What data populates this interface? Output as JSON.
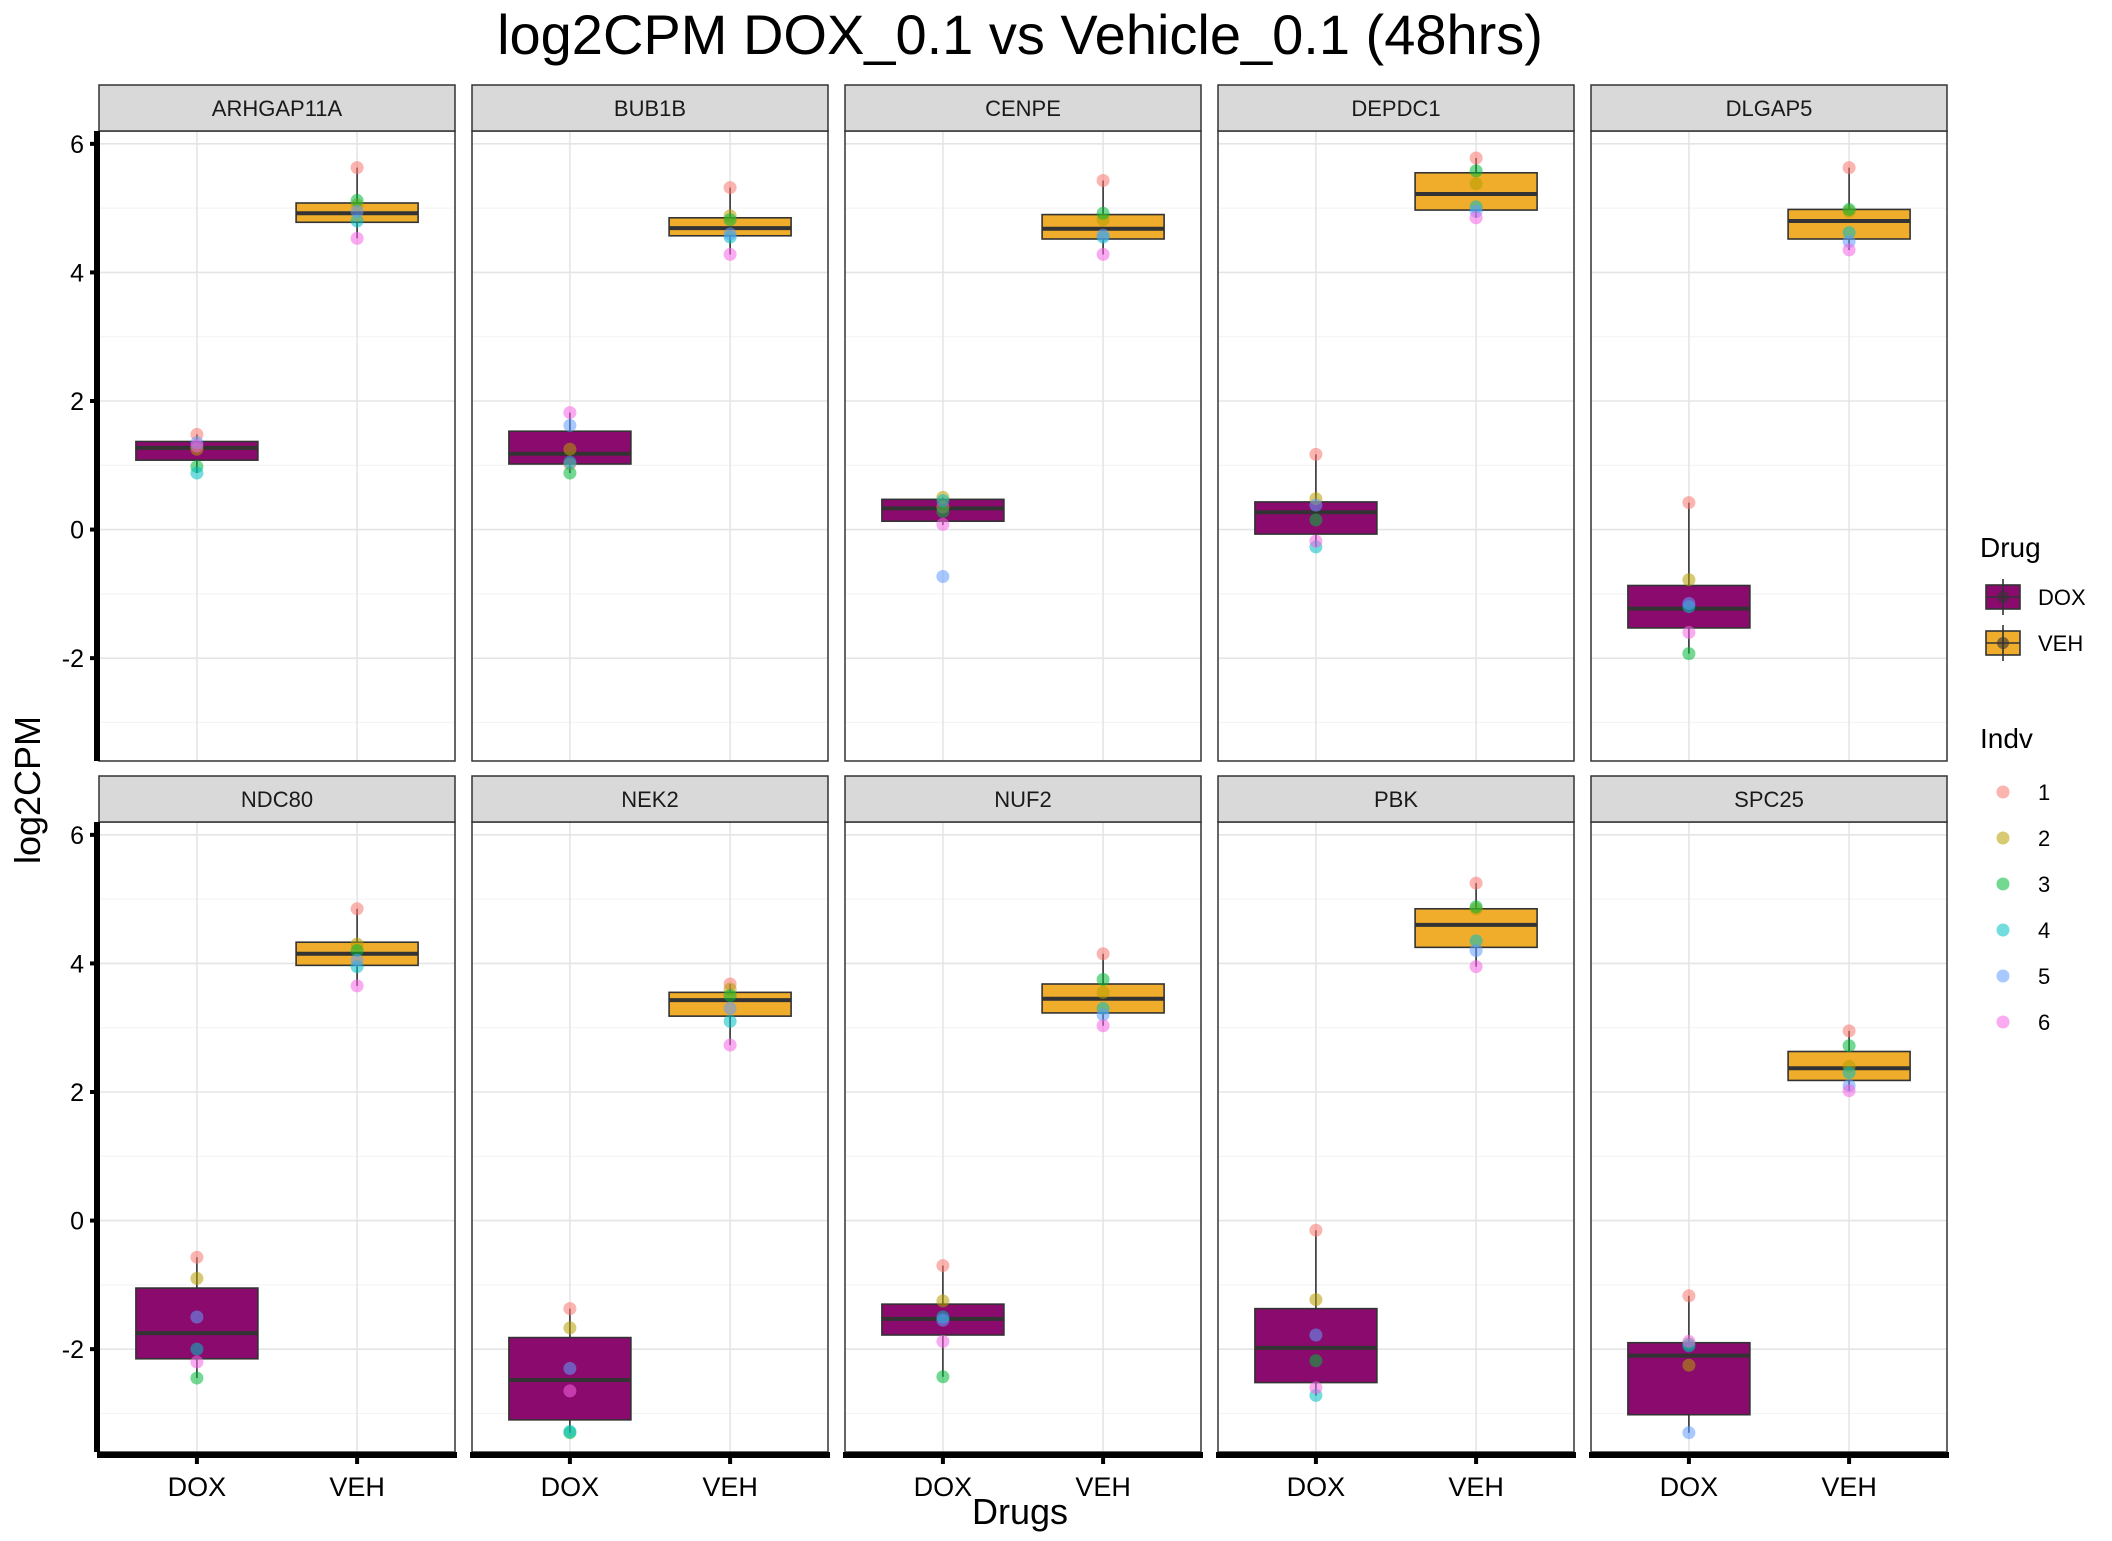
{
  "chart_data": {
    "type": "box",
    "title": "log2CPM DOX_0.1 vs Vehicle_0.1 (48hrs)",
    "xlabel": "Drugs",
    "ylabel": "log2CPM",
    "ylim": [
      -3.6,
      6.2
    ],
    "yticks": [
      -2,
      0,
      2,
      4,
      6
    ],
    "ytick_labels": [
      "-2",
      "0",
      "2",
      "4",
      "6"
    ],
    "categories": [
      "DOX",
      "VEH"
    ],
    "grid": true,
    "facet_layout": "2 rows x 5 columns",
    "legend_position": "right",
    "legends": {
      "drug": {
        "title": "Drug",
        "items": [
          {
            "label": "DOX",
            "color": "#8B0A6E"
          },
          {
            "label": "VEH",
            "color": "#F0AD2B"
          }
        ]
      },
      "indv": {
        "title": "Indv",
        "items": [
          {
            "label": "1",
            "color": "#F8766D"
          },
          {
            "label": "2",
            "color": "#B79F00"
          },
          {
            "label": "3",
            "color": "#00BA38"
          },
          {
            "label": "4",
            "color": "#00BFC4"
          },
          {
            "label": "5",
            "color": "#619CFF"
          },
          {
            "label": "6",
            "color": "#F564E3"
          }
        ]
      }
    },
    "facets": [
      {
        "gene": "ARHGAP11A",
        "DOX": {
          "q1": 1.08,
          "median": 1.27,
          "q3": 1.37,
          "whisker_low": 0.88,
          "whisker_high": 1.48,
          "points": [
            1.48,
            1.25,
            0.98,
            0.88,
            1.35,
            1.3
          ]
        },
        "VEH": {
          "q1": 4.78,
          "median": 4.92,
          "q3": 5.08,
          "whisker_low": 4.53,
          "whisker_high": 5.63,
          "points": [
            5.63,
            5.05,
            5.12,
            4.8,
            4.95,
            4.53
          ]
        }
      },
      {
        "gene": "BUB1B",
        "DOX": {
          "q1": 1.02,
          "median": 1.18,
          "q3": 1.53,
          "whisker_low": 0.88,
          "whisker_high": 1.82,
          "points": [
            1.02,
            1.25,
            0.88,
            1.05,
            1.62,
            1.82
          ]
        },
        "VEH": {
          "q1": 4.57,
          "median": 4.69,
          "q3": 4.85,
          "whisker_low": 4.28,
          "whisker_high": 5.32,
          "points": [
            5.32,
            4.88,
            4.82,
            4.55,
            4.6,
            4.28
          ]
        }
      },
      {
        "gene": "CENPE",
        "DOX": {
          "q1": 0.13,
          "median": 0.33,
          "q3": 0.47,
          "whisker_low": 0.07,
          "whisker_high": 0.5,
          "points": [
            0.35,
            0.5,
            0.28,
            0.45,
            -0.73,
            0.08
          ]
        },
        "VEH": {
          "q1": 4.52,
          "median": 4.68,
          "q3": 4.9,
          "whisker_low": 4.28,
          "whisker_high": 5.43,
          "points": [
            5.43,
            4.82,
            4.92,
            4.55,
            4.58,
            4.28
          ]
        }
      },
      {
        "gene": "DEPDC1",
        "DOX": {
          "q1": -0.07,
          "median": 0.27,
          "q3": 0.43,
          "whisker_low": -0.27,
          "whisker_high": 1.17,
          "points": [
            1.17,
            0.48,
            0.15,
            -0.27,
            0.38,
            -0.18
          ]
        },
        "VEH": {
          "q1": 4.97,
          "median": 5.22,
          "q3": 5.55,
          "whisker_low": 4.85,
          "whisker_high": 5.78,
          "points": [
            5.78,
            5.38,
            5.58,
            5.02,
            4.95,
            4.85
          ]
        }
      },
      {
        "gene": "DLGAP5",
        "DOX": {
          "q1": -1.53,
          "median": -1.23,
          "q3": -0.87,
          "whisker_low": -1.93,
          "whisker_high": 0.42,
          "points": [
            0.42,
            -0.78,
            -1.93,
            -1.2,
            -1.15,
            -1.6
          ]
        },
        "VEH": {
          "q1": 4.52,
          "median": 4.8,
          "q3": 4.98,
          "whisker_low": 4.35,
          "whisker_high": 5.63,
          "points": [
            5.63,
            4.95,
            4.98,
            4.62,
            4.48,
            4.35
          ]
        }
      },
      {
        "gene": "NDC80",
        "DOX": {
          "q1": -2.15,
          "median": -1.75,
          "q3": -1.05,
          "whisker_low": -2.45,
          "whisker_high": -0.57,
          "points": [
            -0.57,
            -0.9,
            -2.45,
            -2.0,
            -1.5,
            -2.2
          ]
        },
        "VEH": {
          "q1": 3.97,
          "median": 4.15,
          "q3": 4.33,
          "whisker_low": 3.65,
          "whisker_high": 4.85,
          "points": [
            4.85,
            4.3,
            4.2,
            3.95,
            4.05,
            3.65
          ]
        }
      },
      {
        "gene": "NEK2",
        "DOX": {
          "q1": -3.1,
          "median": -2.48,
          "q3": -1.82,
          "whisker_low": -3.3,
          "whisker_high": -1.37,
          "points": [
            -1.37,
            -1.67,
            -3.3,
            -3.28,
            -2.3,
            -2.65
          ]
        },
        "VEH": {
          "q1": 3.18,
          "median": 3.43,
          "q3": 3.55,
          "whisker_low": 2.73,
          "whisker_high": 3.68,
          "points": [
            3.68,
            3.6,
            3.5,
            3.1,
            3.3,
            2.73
          ]
        }
      },
      {
        "gene": "NUF2",
        "DOX": {
          "q1": -1.78,
          "median": -1.53,
          "q3": -1.3,
          "whisker_low": -2.43,
          "whisker_high": -0.7,
          "points": [
            -0.7,
            -1.25,
            -2.43,
            -1.5,
            -1.55,
            -1.88
          ]
        },
        "VEH": {
          "q1": 3.23,
          "median": 3.45,
          "q3": 3.68,
          "whisker_low": 3.03,
          "whisker_high": 4.15,
          "points": [
            4.15,
            3.55,
            3.75,
            3.3,
            3.2,
            3.03
          ]
        }
      },
      {
        "gene": "PBK",
        "DOX": {
          "q1": -2.52,
          "median": -1.98,
          "q3": -1.37,
          "whisker_low": -2.72,
          "whisker_high": -0.15,
          "points": [
            -0.15,
            -1.23,
            -2.18,
            -2.72,
            -1.78,
            -2.6
          ]
        },
        "VEH": {
          "q1": 4.25,
          "median": 4.6,
          "q3": 4.85,
          "whisker_low": 3.95,
          "whisker_high": 5.25,
          "points": [
            5.25,
            4.85,
            4.88,
            4.35,
            4.2,
            3.95
          ]
        }
      },
      {
        "gene": "SPC25",
        "DOX": {
          "q1": -3.02,
          "median": -2.1,
          "q3": -1.9,
          "whisker_low": -3.3,
          "whisker_high": -1.17,
          "points": [
            -1.17,
            -2.25,
            -1.92,
            -1.95,
            -3.3,
            -1.88
          ]
        },
        "VEH": {
          "q1": 2.18,
          "median": 2.37,
          "q3": 2.63,
          "whisker_low": 2.02,
          "whisker_high": 2.95,
          "points": [
            2.95,
            2.4,
            2.72,
            2.3,
            2.1,
            2.02
          ]
        }
      }
    ]
  }
}
